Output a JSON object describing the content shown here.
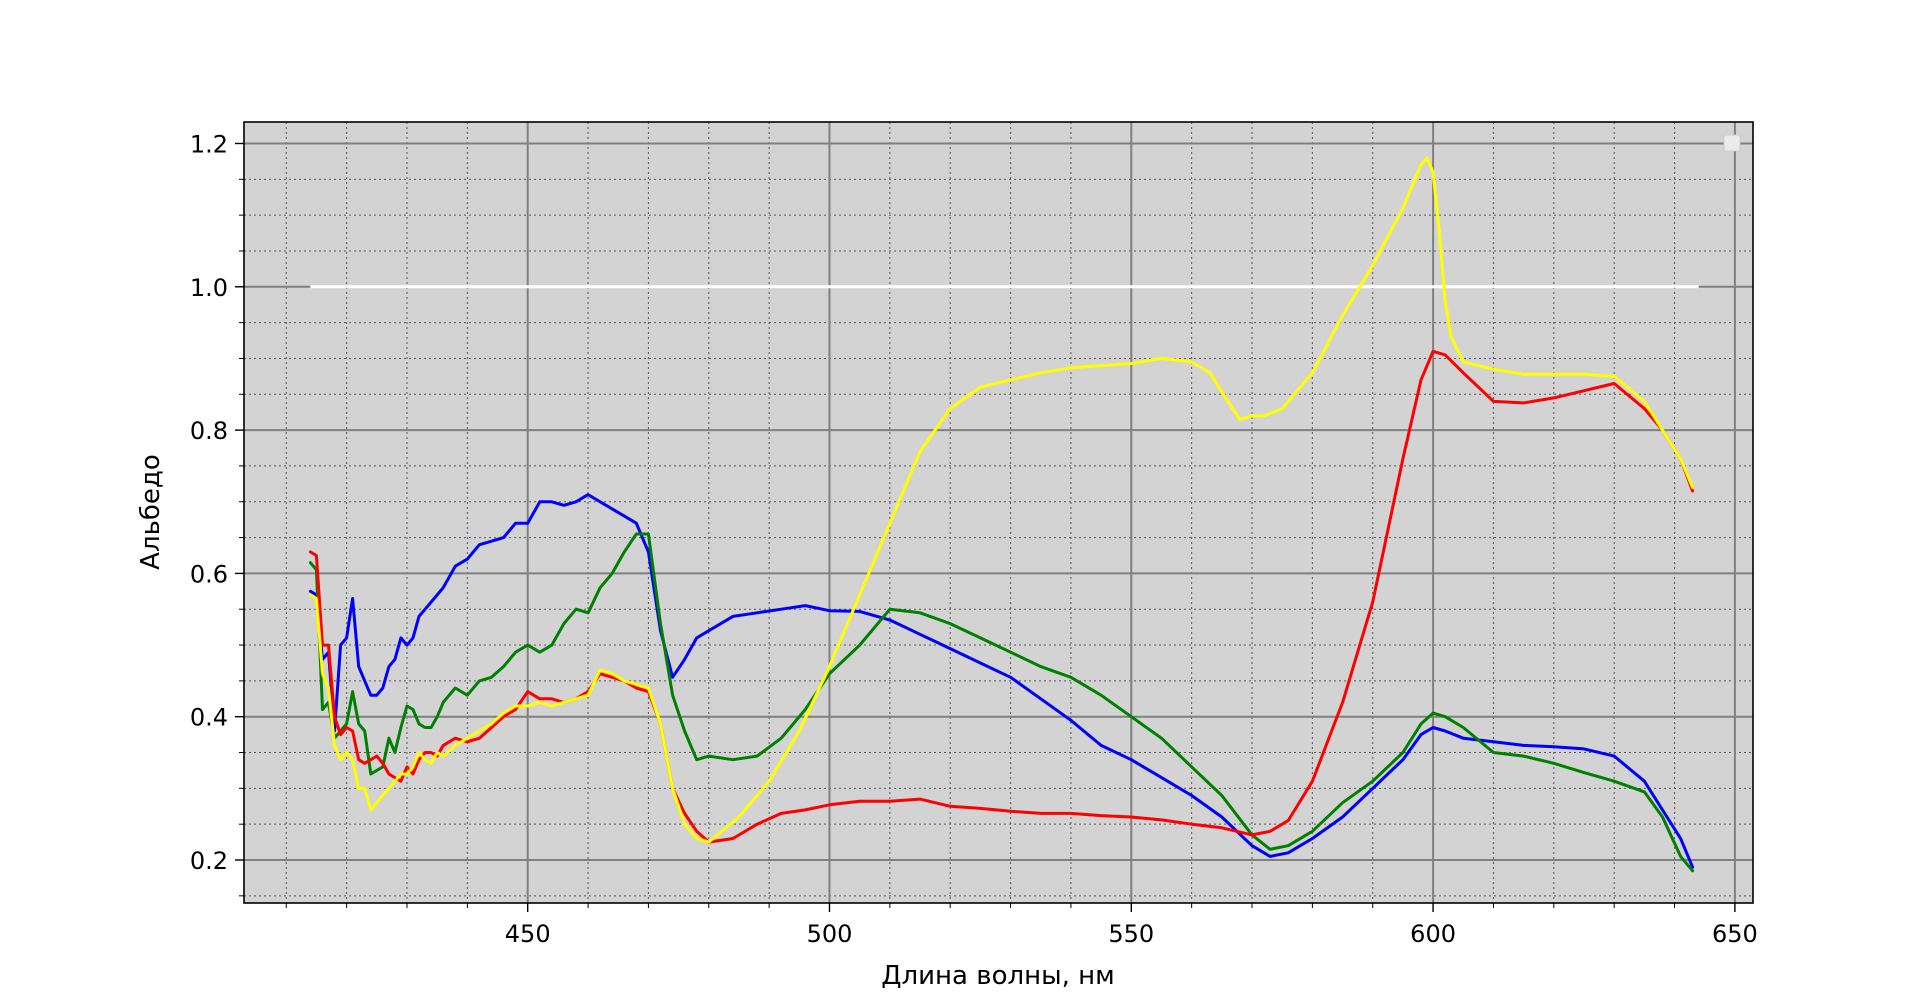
{
  "chart_data": {
    "type": "line",
    "title": "",
    "xlabel": "Длина волны, нм",
    "ylabel": "Альбедо",
    "xlim": [
      403,
      653
    ],
    "ylim": [
      0.14,
      1.23
    ],
    "xticks": [
      450,
      500,
      550,
      600,
      650
    ],
    "xtick_labels": [
      "450",
      "500",
      "550",
      "600",
      "650"
    ],
    "yticks": [
      0.2,
      0.4,
      0.6,
      0.8,
      1.0,
      1.2
    ],
    "ytick_labels": [
      "0.2",
      "0.4",
      "0.6",
      "0.8",
      "1.0",
      "1.2"
    ],
    "grid": true,
    "minor_grid": true,
    "background": "#d3d3d3",
    "legend": "top-right (empty)",
    "reference_line": {
      "y": 1.0,
      "x_from": 414,
      "x_to": 644,
      "color": "#ffffff"
    },
    "series": [
      {
        "color": "#0000ff",
        "x": [
          414,
          415,
          416,
          417,
          418,
          419,
          420,
          421,
          422,
          423,
          424,
          425,
          426,
          427,
          428,
          429,
          430,
          431,
          432,
          433,
          434,
          435,
          436,
          438,
          440,
          442,
          444,
          446,
          448,
          450,
          452,
          454,
          456,
          458,
          460,
          462,
          464,
          466,
          468,
          470,
          472,
          474,
          476,
          478,
          480,
          484,
          488,
          492,
          496,
          500,
          505,
          510,
          515,
          520,
          525,
          530,
          535,
          540,
          545,
          550,
          555,
          560,
          565,
          570,
          573,
          576,
          580,
          585,
          590,
          595,
          598,
          600,
          602,
          605,
          610,
          615,
          620,
          625,
          630,
          635,
          638,
          641,
          643
        ],
        "values": [
          0.575,
          0.57,
          0.48,
          0.49,
          0.38,
          0.5,
          0.51,
          0.565,
          0.47,
          0.45,
          0.43,
          0.43,
          0.44,
          0.47,
          0.48,
          0.51,
          0.5,
          0.51,
          0.54,
          0.55,
          0.56,
          0.57,
          0.58,
          0.61,
          0.62,
          0.64,
          0.645,
          0.65,
          0.67,
          0.67,
          0.7,
          0.7,
          0.695,
          0.7,
          0.71,
          0.7,
          0.69,
          0.68,
          0.67,
          0.63,
          0.52,
          0.455,
          0.48,
          0.51,
          0.52,
          0.54,
          0.545,
          0.55,
          0.555,
          0.548,
          0.547,
          0.535,
          0.515,
          0.495,
          0.475,
          0.455,
          0.425,
          0.395,
          0.36,
          0.34,
          0.315,
          0.29,
          0.26,
          0.22,
          0.205,
          0.21,
          0.23,
          0.26,
          0.3,
          0.34,
          0.375,
          0.385,
          0.38,
          0.37,
          0.365,
          0.36,
          0.358,
          0.355,
          0.345,
          0.31,
          0.27,
          0.23,
          0.19
        ]
      },
      {
        "color": "#008000",
        "x": [
          414,
          415,
          416,
          417,
          418,
          419,
          420,
          421,
          422,
          423,
          424,
          425,
          426,
          427,
          428,
          429,
          430,
          431,
          432,
          433,
          434,
          435,
          436,
          438,
          440,
          442,
          444,
          446,
          448,
          450,
          452,
          454,
          456,
          458,
          460,
          462,
          464,
          466,
          468,
          470,
          472,
          474,
          476,
          478,
          480,
          484,
          488,
          492,
          496,
          500,
          505,
          510,
          515,
          520,
          525,
          530,
          535,
          540,
          545,
          550,
          555,
          560,
          565,
          570,
          573,
          576,
          580,
          585,
          590,
          595,
          598,
          600,
          602,
          605,
          610,
          615,
          620,
          625,
          630,
          635,
          638,
          641,
          643
        ],
        "values": [
          0.615,
          0.605,
          0.41,
          0.42,
          0.37,
          0.38,
          0.39,
          0.435,
          0.39,
          0.38,
          0.32,
          0.325,
          0.33,
          0.37,
          0.35,
          0.385,
          0.415,
          0.41,
          0.39,
          0.385,
          0.385,
          0.4,
          0.42,
          0.44,
          0.43,
          0.45,
          0.455,
          0.47,
          0.49,
          0.5,
          0.49,
          0.5,
          0.53,
          0.55,
          0.545,
          0.58,
          0.6,
          0.63,
          0.655,
          0.655,
          0.53,
          0.43,
          0.38,
          0.34,
          0.345,
          0.34,
          0.345,
          0.37,
          0.41,
          0.46,
          0.5,
          0.55,
          0.545,
          0.53,
          0.51,
          0.49,
          0.47,
          0.455,
          0.43,
          0.4,
          0.37,
          0.33,
          0.29,
          0.235,
          0.215,
          0.22,
          0.24,
          0.28,
          0.31,
          0.35,
          0.39,
          0.405,
          0.4,
          0.385,
          0.35,
          0.345,
          0.335,
          0.322,
          0.31,
          0.295,
          0.26,
          0.205,
          0.185
        ]
      },
      {
        "color": "#ff0000",
        "x": [
          414,
          415,
          416,
          417,
          418,
          419,
          420,
          421,
          422,
          423,
          424,
          425,
          426,
          427,
          428,
          429,
          430,
          431,
          432,
          433,
          434,
          435,
          436,
          438,
          440,
          442,
          444,
          446,
          448,
          450,
          452,
          454,
          456,
          458,
          460,
          462,
          464,
          466,
          468,
          470,
          472,
          474,
          476,
          478,
          480,
          484,
          488,
          492,
          496,
          500,
          505,
          510,
          515,
          520,
          525,
          530,
          535,
          540,
          545,
          550,
          555,
          560,
          565,
          570,
          573,
          576,
          580,
          585,
          590,
          595,
          598,
          600,
          602,
          605,
          610,
          615,
          620,
          625,
          630,
          635,
          638,
          641,
          643
        ],
        "values": [
          0.63,
          0.625,
          0.5,
          0.5,
          0.4,
          0.375,
          0.385,
          0.38,
          0.34,
          0.335,
          0.34,
          0.345,
          0.335,
          0.32,
          0.315,
          0.31,
          0.33,
          0.32,
          0.34,
          0.35,
          0.35,
          0.345,
          0.36,
          0.37,
          0.365,
          0.37,
          0.385,
          0.4,
          0.41,
          0.435,
          0.425,
          0.425,
          0.42,
          0.425,
          0.435,
          0.46,
          0.455,
          0.45,
          0.44,
          0.435,
          0.39,
          0.3,
          0.265,
          0.24,
          0.225,
          0.23,
          0.25,
          0.265,
          0.27,
          0.277,
          0.282,
          0.282,
          0.285,
          0.275,
          0.272,
          0.268,
          0.265,
          0.265,
          0.262,
          0.26,
          0.256,
          0.25,
          0.245,
          0.235,
          0.24,
          0.255,
          0.31,
          0.42,
          0.56,
          0.76,
          0.87,
          0.91,
          0.905,
          0.88,
          0.84,
          0.838,
          0.845,
          0.855,
          0.865,
          0.83,
          0.8,
          0.76,
          0.715
        ]
      },
      {
        "color": "#ffff00",
        "x": [
          414,
          415,
          416,
          417,
          418,
          419,
          420,
          421,
          422,
          423,
          424,
          425,
          426,
          427,
          428,
          429,
          430,
          431,
          432,
          433,
          434,
          435,
          436,
          438,
          440,
          442,
          444,
          446,
          448,
          450,
          452,
          454,
          456,
          458,
          460,
          462,
          464,
          466,
          468,
          470,
          472,
          474,
          476,
          478,
          480,
          485,
          490,
          495,
          500,
          505,
          510,
          515,
          520,
          525,
          530,
          535,
          540,
          545,
          550,
          555,
          560,
          563,
          566,
          568,
          570,
          572,
          575,
          580,
          585,
          590,
          595,
          598,
          599,
          600,
          601,
          602,
          603,
          605,
          610,
          615,
          620,
          625,
          630,
          635,
          638,
          641,
          643
        ],
        "values": [
          0.57,
          0.565,
          0.46,
          0.44,
          0.36,
          0.34,
          0.35,
          0.34,
          0.3,
          0.3,
          0.27,
          0.28,
          0.29,
          0.3,
          0.31,
          0.32,
          0.32,
          0.33,
          0.35,
          0.34,
          0.335,
          0.35,
          0.345,
          0.36,
          0.37,
          0.38,
          0.39,
          0.405,
          0.415,
          0.415,
          0.42,
          0.415,
          0.42,
          0.425,
          0.43,
          0.465,
          0.46,
          0.45,
          0.445,
          0.44,
          0.39,
          0.3,
          0.25,
          0.23,
          0.225,
          0.26,
          0.31,
          0.38,
          0.47,
          0.57,
          0.67,
          0.77,
          0.83,
          0.86,
          0.87,
          0.88,
          0.887,
          0.89,
          0.893,
          0.9,
          0.895,
          0.88,
          0.84,
          0.815,
          0.82,
          0.82,
          0.83,
          0.88,
          0.96,
          1.03,
          1.11,
          1.17,
          1.18,
          1.16,
          1.08,
          0.98,
          0.93,
          0.895,
          0.885,
          0.878,
          0.878,
          0.878,
          0.875,
          0.84,
          0.8,
          0.76,
          0.72
        ]
      }
    ]
  }
}
